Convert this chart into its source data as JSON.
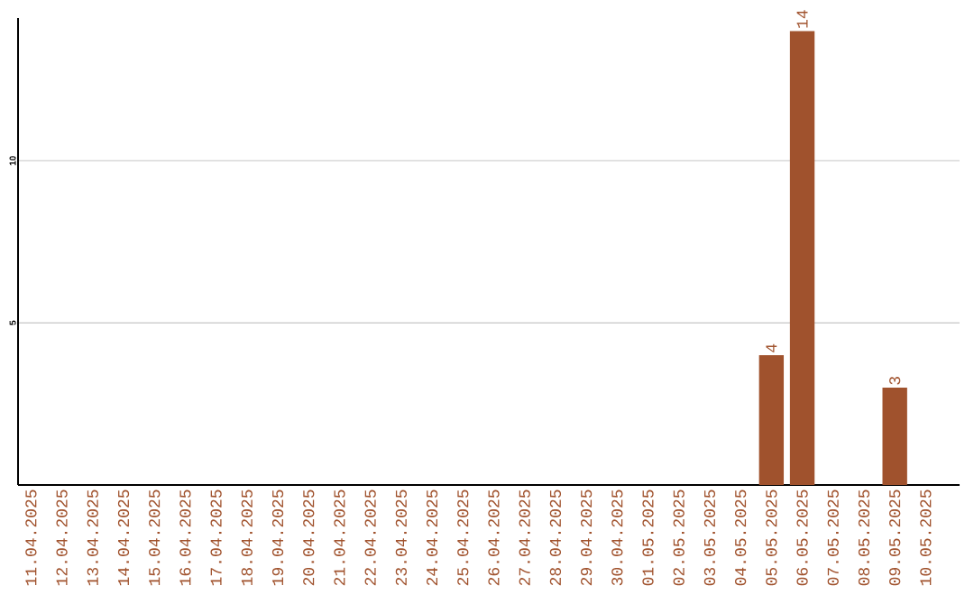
{
  "chart_data": {
    "type": "bar",
    "categories": [
      "11.04.2025",
      "12.04.2025",
      "13.04.2025",
      "14.04.2025",
      "15.04.2025",
      "16.04.2025",
      "17.04.2025",
      "18.04.2025",
      "19.04.2025",
      "20.04.2025",
      "21.04.2025",
      "22.04.2025",
      "23.04.2025",
      "24.04.2025",
      "25.04.2025",
      "26.04.2025",
      "27.04.2025",
      "28.04.2025",
      "29.04.2025",
      "30.04.2025",
      "01.05.2025",
      "02.05.2025",
      "03.05.2025",
      "04.05.2025",
      "05.05.2025",
      "06.05.2025",
      "07.05.2025",
      "08.05.2025",
      "09.05.2025",
      "10.05.2025"
    ],
    "values": [
      0,
      0,
      0,
      0,
      0,
      0,
      0,
      0,
      0,
      0,
      0,
      0,
      0,
      0,
      0,
      0,
      0,
      0,
      0,
      0,
      0,
      0,
      0,
      0,
      4,
      14,
      0,
      0,
      3,
      0
    ],
    "value_labels": [
      null,
      null,
      null,
      null,
      null,
      null,
      null,
      null,
      null,
      null,
      null,
      null,
      null,
      null,
      null,
      null,
      null,
      null,
      null,
      null,
      null,
      null,
      null,
      null,
      "4",
      "14",
      null,
      null,
      "3",
      null
    ],
    "color": "#a0522d",
    "ylim": [
      0,
      14.4
    ],
    "yticks": [
      5,
      10
    ],
    "grid": "y"
  }
}
